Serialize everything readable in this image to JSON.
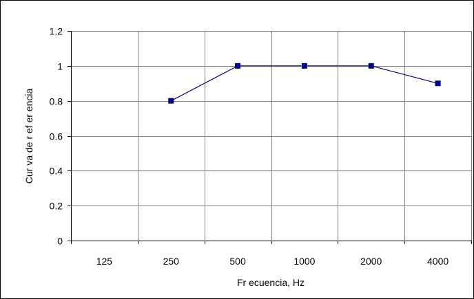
{
  "chart_data": {
    "type": "line",
    "categories": [
      "125",
      "250",
      "500",
      "1000",
      "2000",
      "4000"
    ],
    "series": [
      {
        "values": [
          null,
          0.8,
          1.0,
          1.0,
          1.0,
          0.9
        ]
      }
    ],
    "xlabel": "Fr ecuencia, Hz",
    "ylabel": "Cur va de r ef er encia",
    "ylim": [
      0,
      1.2
    ],
    "yticks": [
      0,
      0.2,
      0.4,
      0.6,
      0.8,
      1,
      1.2
    ],
    "grid": true,
    "legend": "none",
    "colors": {
      "series": "#000080",
      "grid": "#808080",
      "axis": "#000000"
    }
  }
}
